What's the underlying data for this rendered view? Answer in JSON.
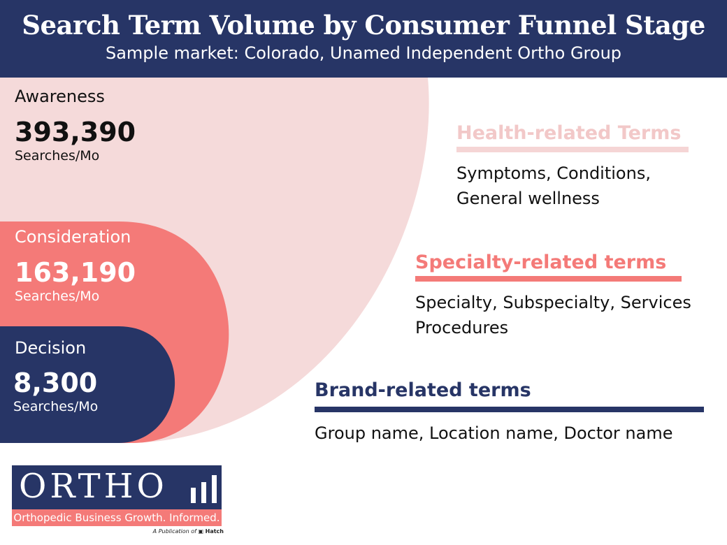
{
  "header": {
    "title": "Search Term Volume by Consumer Funnel Stage",
    "subtitle": "Sample market: Colorado, Unamed Independent Ortho Group"
  },
  "stages": [
    {
      "name": "Awareness",
      "value": "393,390",
      "unit": "Searches/Mo",
      "color": "#f5dada"
    },
    {
      "name": "Consideration",
      "value": "163,190",
      "unit": "Searches/Mo",
      "color": "#f47a78"
    },
    {
      "name": "Decision",
      "value": "8,300",
      "unit": "Searches/Mo",
      "color": "#273566"
    }
  ],
  "terms": [
    {
      "heading": "Health-related Terms",
      "lines": [
        "Symptoms, Conditions,",
        "General wellness"
      ],
      "color": "#f2cccc"
    },
    {
      "heading": "Specialty-related terms",
      "lines": [
        "Specialty, Subspecialty, Services",
        "Procedures"
      ],
      "color": "#f47a78"
    },
    {
      "heading": "Brand-related terms",
      "lines": [
        "Group name, Location name, Doctor name"
      ],
      "color": "#273566"
    }
  ],
  "logo": {
    "wordmark": "ORTHO",
    "tagline": "Orthopedic Business Growth. Informed.",
    "publication_prefix": "A Publication of",
    "publication_brand": "Hatch"
  }
}
